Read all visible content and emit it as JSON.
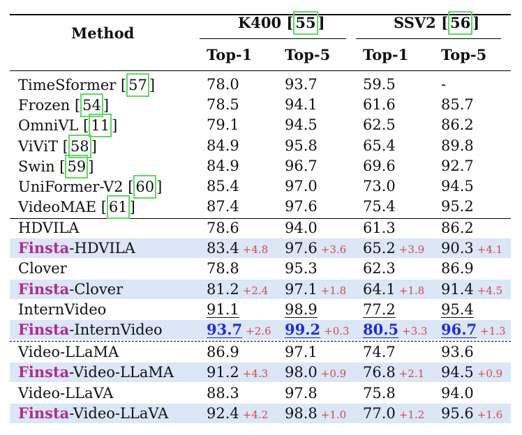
{
  "header": {
    "method": "Method",
    "k400": "K400",
    "k400_ref": "55",
    "ssv2": "SSV2",
    "ssv2_ref": "56",
    "top1": "Top-1",
    "top5": "Top-5"
  },
  "baselines": [
    {
      "name": "TimeSformer",
      "ref": "57",
      "k1": "78.0",
      "k5": "93.7",
      "s1": "59.5",
      "s5": "-"
    },
    {
      "name": "Frozen",
      "ref": "54",
      "k1": "78.5",
      "k5": "94.1",
      "s1": "61.6",
      "s5": "85.7"
    },
    {
      "name": "OmniVL",
      "ref": "11",
      "k1": "79.1",
      "k5": "94.5",
      "s1": "62.5",
      "s5": "86.2"
    },
    {
      "name": "ViViT",
      "ref": "58",
      "k1": "84.9",
      "k5": "95.8",
      "s1": "65.4",
      "s5": "89.8"
    },
    {
      "name": "Swin",
      "ref": "59",
      "k1": "84.9",
      "k5": "96.7",
      "s1": "69.6",
      "s5": "92.7"
    },
    {
      "name": "UniFormer-V2",
      "ref": "60",
      "k1": "85.4",
      "k5": "97.0",
      "s1": "73.0",
      "s5": "94.5"
    },
    {
      "name": "VideoMAE",
      "ref": "61",
      "k1": "87.4",
      "k5": "97.6",
      "s1": "75.4",
      "s5": "95.2"
    }
  ],
  "finsta_prefix": "Finsta",
  "groups": [
    {
      "name": "HDVILA",
      "k1": "78.6",
      "k5": "94.0",
      "s1": "61.3",
      "s5": "86.2",
      "f_suffix": "-HDVILA",
      "fk1": "83.4",
      "gk1": "+4.8",
      "fk5": "97.6",
      "gk5": "+3.6",
      "fs1": "65.2",
      "gs1": "+3.9",
      "fs5": "90.3",
      "gs5": "+4.1"
    },
    {
      "name": "Clover",
      "k1": "78.8",
      "k5": "95.3",
      "s1": "62.3",
      "s5": "86.9",
      "f_suffix": "-Clover",
      "fk1": "81.2",
      "gk1": "+2.4",
      "fk5": "97.1",
      "gk5": "+1.8",
      "fs1": "64.1",
      "gs1": "+1.8",
      "fs5": "91.4",
      "gs5": "+4.5"
    },
    {
      "name": "InternVideo",
      "k1": "91.1",
      "k5": "98.9",
      "s1": "77.2",
      "s5": "95.4",
      "f_suffix": "-InternVideo",
      "fk1": "93.7",
      "gk1": "+2.6",
      "fk5": "99.2",
      "gk5": "+0.3",
      "fs1": "80.5",
      "gs1": "+3.3",
      "fs5": "96.7",
      "gs5": "+1.3"
    },
    {
      "name": "Video-LLaMA",
      "k1": "86.9",
      "k5": "97.1",
      "s1": "74.7",
      "s5": "93.6",
      "f_suffix": "-Video-LLaMA",
      "fk1": "91.2",
      "gk1": "+4.3",
      "fk5": "98.0",
      "gk5": "+0.9",
      "fs1": "76.8",
      "gs1": "+2.1",
      "fs5": "94.5",
      "gs5": "+0.9"
    },
    {
      "name": "Video-LLaVA",
      "k1": "88.3",
      "k5": "97.8",
      "s1": "75.8",
      "s5": "94.0",
      "f_suffix": "-Video-LLaVA",
      "fk1": "92.4",
      "gk1": "+4.2",
      "fk5": "98.8",
      "gk5": "+1.0",
      "fs1": "77.0",
      "gs1": "+1.2",
      "fs5": "95.6",
      "gs5": "+1.6"
    }
  ]
}
